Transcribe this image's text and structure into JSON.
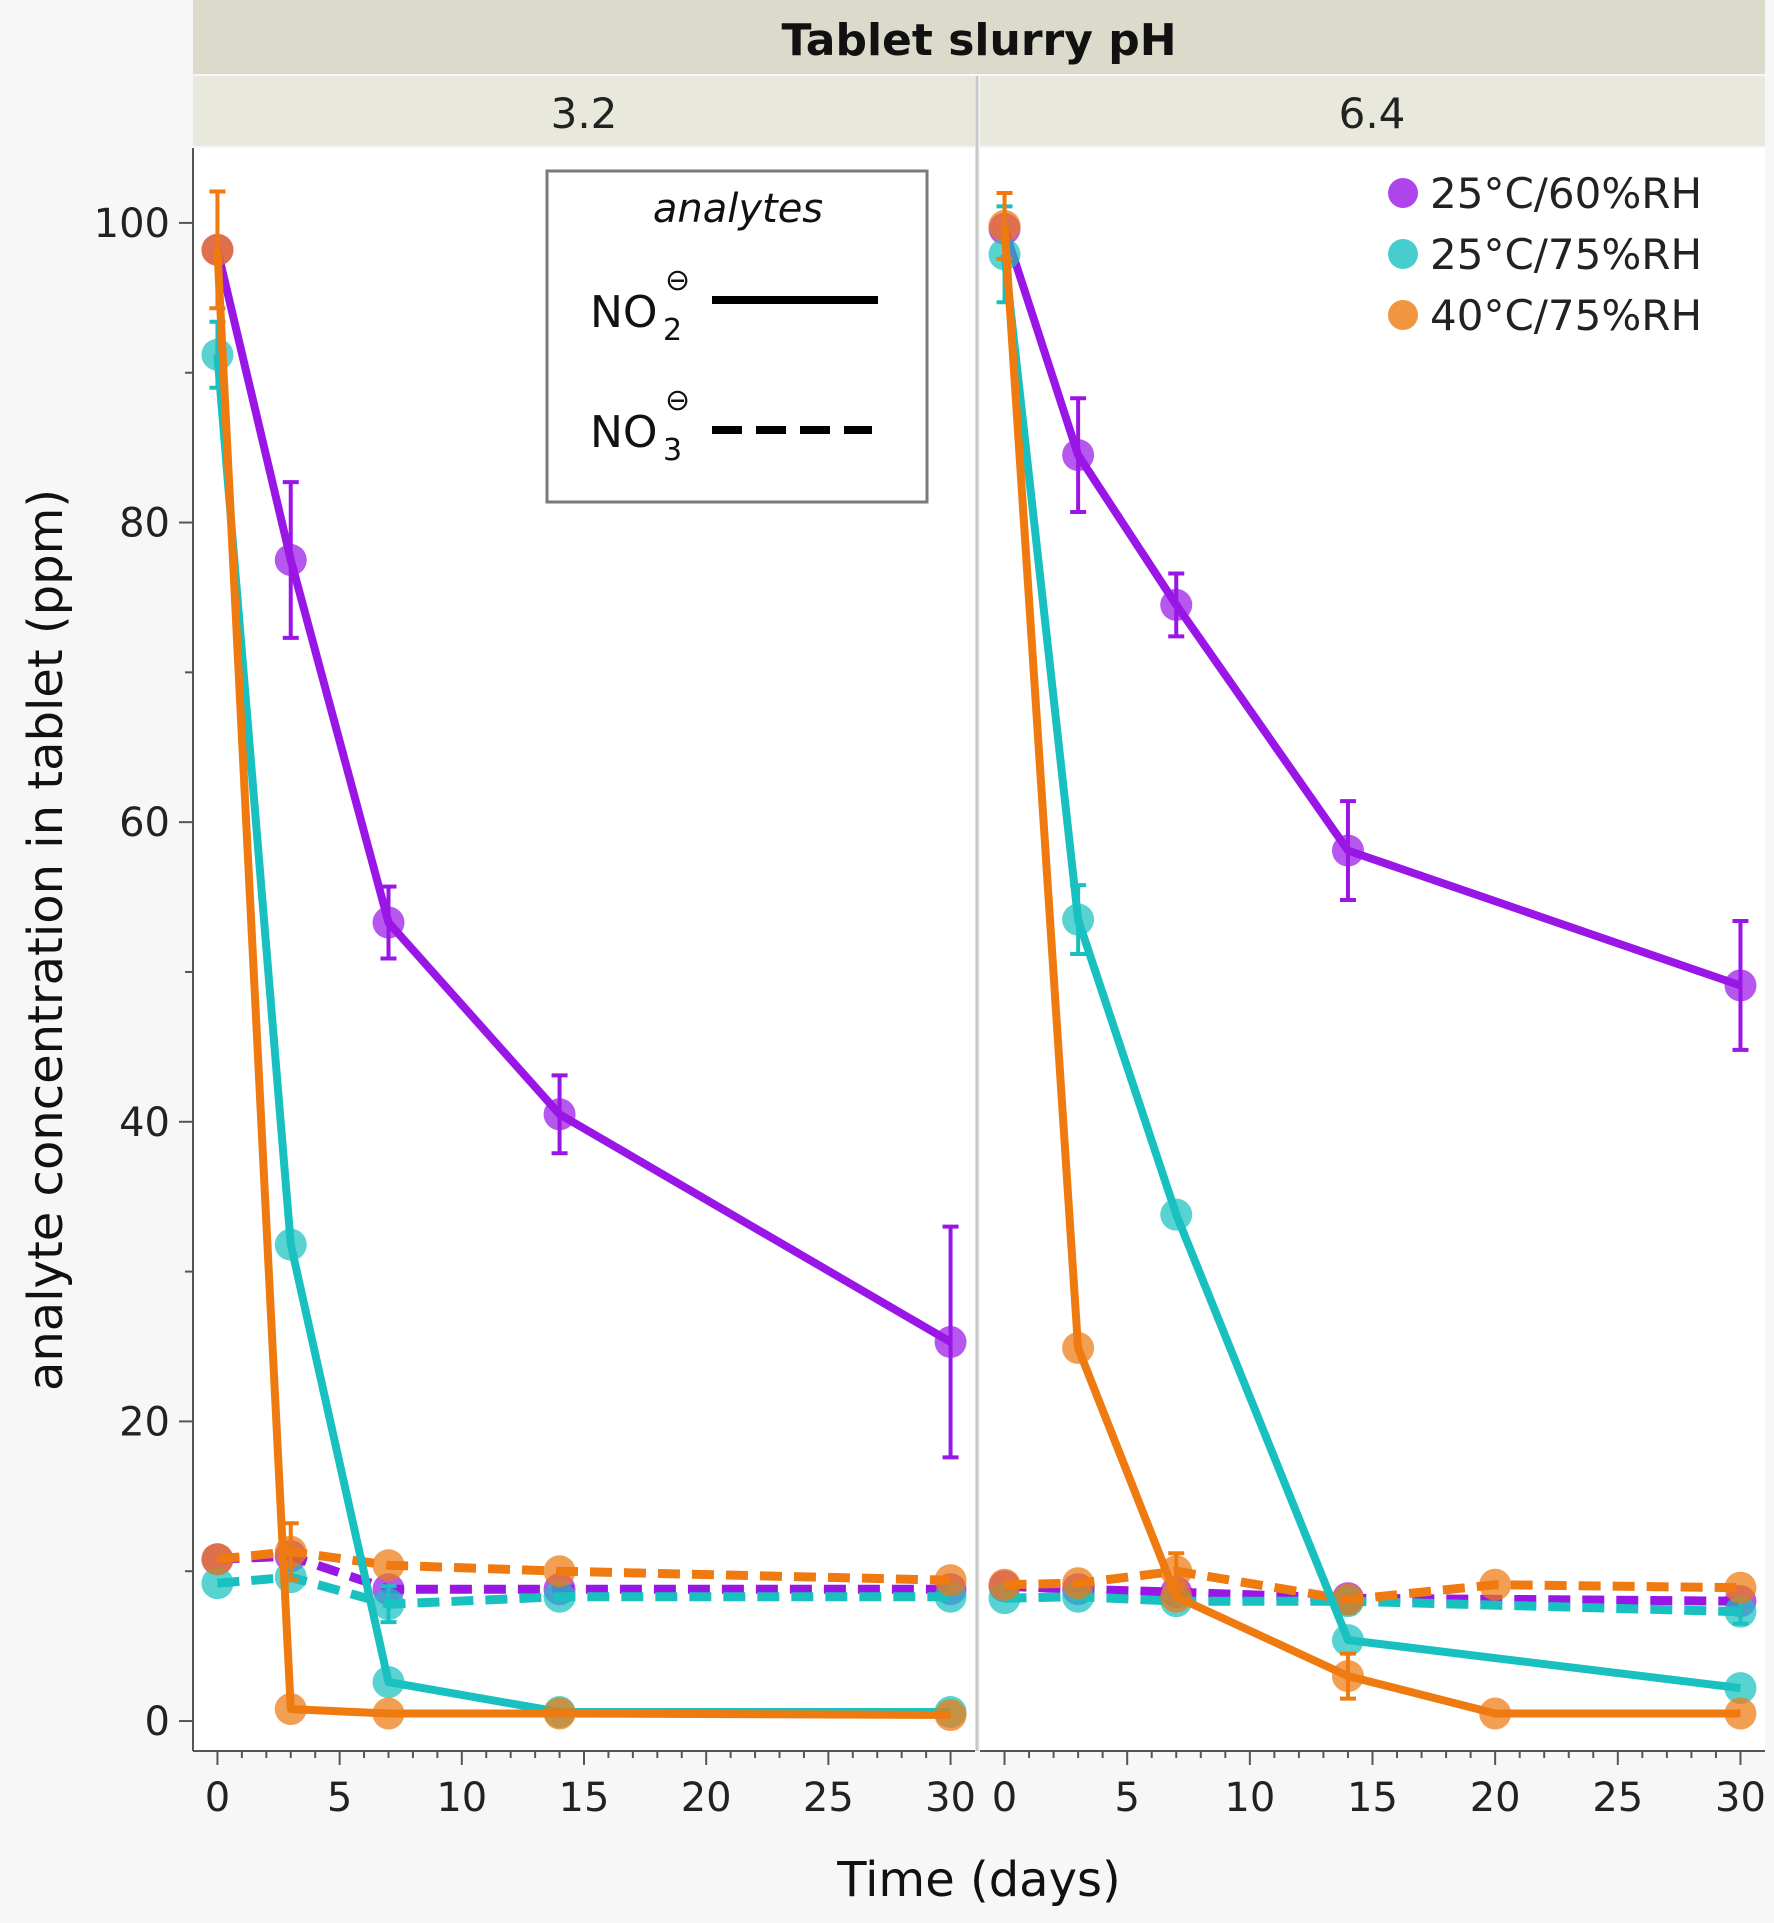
{
  "chart_data": {
    "type": "line",
    "facet_title": "Tablet slurry pH",
    "facets": [
      "3.2",
      "6.4"
    ],
    "xlabel": "Time (days)",
    "ylabel": "analyte concentration in tablet (ppm)",
    "xlim": [
      -1,
      31
    ],
    "ylim": [
      -2,
      105
    ],
    "xticks": [
      0,
      5,
      10,
      15,
      20,
      25,
      30
    ],
    "xtick_labels": [
      "0",
      "5",
      "10",
      "15",
      "20",
      "25",
      "30"
    ],
    "yticks": [
      0,
      20,
      40,
      60,
      80,
      100
    ],
    "ytick_labels": [
      "0",
      "20",
      "40",
      "60",
      "80",
      "100"
    ],
    "legend": {
      "placement": "top-right",
      "items": [
        {
          "label": "25°C/60%RH",
          "color": "#9a16e6"
        },
        {
          "label": "25°C/75%RH",
          "color": "#19c0c0"
        },
        {
          "label": "40°C/75%RH",
          "color": "#ee7a10"
        }
      ]
    },
    "analytes_legend": {
      "title": "analytes",
      "items": [
        {
          "base": "NO",
          "sub": "2",
          "charge": "⊖",
          "style": "solid"
        },
        {
          "base": "NO",
          "sub": "3",
          "charge": "⊖",
          "style": "dashed"
        }
      ]
    },
    "series": [
      {
        "facet": "3.2",
        "condition": "25°C/60%RH",
        "analyte": "nitrite",
        "color": "#9a16e6",
        "dash": false,
        "x": [
          0,
          3,
          7,
          14,
          30
        ],
        "y": [
          98.2,
          77.5,
          53.3,
          40.5,
          25.3
        ],
        "err": [
          null,
          5.2,
          2.4,
          2.6,
          7.7
        ]
      },
      {
        "facet": "3.2",
        "condition": "25°C/75%RH",
        "analyte": "nitrite",
        "color": "#19c0c0",
        "dash": false,
        "x": [
          0,
          3,
          7,
          14,
          30
        ],
        "y": [
          91.2,
          31.8,
          2.6,
          0.6,
          0.6
        ],
        "err": [
          2.2,
          null,
          null,
          null,
          null
        ]
      },
      {
        "facet": "3.2",
        "condition": "40°C/75%RH",
        "analyte": "nitrite",
        "color": "#ee7a10",
        "dash": false,
        "x": [
          0,
          3,
          7,
          14,
          30
        ],
        "y": [
          98.2,
          0.8,
          0.5,
          0.5,
          0.4
        ],
        "err": [
          3.9,
          null,
          null,
          null,
          null
        ]
      },
      {
        "facet": "3.2",
        "condition": "25°C/60%RH",
        "analyte": "nitrate",
        "color": "#9a16e6",
        "dash": true,
        "x": [
          0,
          3,
          7,
          14,
          30
        ],
        "y": [
          10.8,
          11.0,
          8.8,
          8.8,
          8.8
        ],
        "err": [
          null,
          null,
          null,
          null,
          null
        ]
      },
      {
        "facet": "3.2",
        "condition": "25°C/75%RH",
        "analyte": "nitrate",
        "color": "#19c0c0",
        "dash": true,
        "x": [
          0,
          3,
          7,
          14,
          30
        ],
        "y": [
          9.2,
          9.6,
          7.8,
          8.3,
          8.3
        ],
        "err": [
          null,
          null,
          1.2,
          null,
          null
        ]
      },
      {
        "facet": "3.2",
        "condition": "40°C/75%RH",
        "analyte": "nitrate",
        "color": "#ee7a10",
        "dash": true,
        "x": [
          0,
          3,
          7,
          14,
          30
        ],
        "y": [
          10.8,
          11.3,
          10.4,
          10.0,
          9.4
        ],
        "err": [
          null,
          1.9,
          null,
          null,
          null
        ]
      },
      {
        "facet": "6.4",
        "condition": "25°C/60%RH",
        "analyte": "nitrite",
        "color": "#9a16e6",
        "dash": false,
        "x": [
          0,
          3,
          7,
          14,
          30
        ],
        "y": [
          99.6,
          84.5,
          74.5,
          58.1,
          49.1
        ],
        "err": [
          null,
          3.8,
          2.1,
          3.3,
          4.3
        ]
      },
      {
        "facet": "6.4",
        "condition": "25°C/75%RH",
        "analyte": "nitrite",
        "color": "#19c0c0",
        "dash": false,
        "x": [
          0,
          3,
          7,
          14,
          30
        ],
        "y": [
          97.9,
          53.5,
          33.8,
          5.4,
          2.2
        ],
        "err": [
          3.2,
          2.3,
          null,
          null,
          null
        ]
      },
      {
        "facet": "6.4",
        "condition": "40°C/75%RH",
        "analyte": "nitrite",
        "color": "#ee7a10",
        "dash": false,
        "x": [
          0,
          3,
          7,
          14,
          20,
          30
        ],
        "y": [
          99.8,
          24.9,
          8.3,
          3.0,
          0.5,
          0.5
        ],
        "err": [
          2.2,
          null,
          null,
          1.5,
          null,
          null
        ]
      },
      {
        "facet": "6.4",
        "condition": "25°C/60%RH",
        "analyte": "nitrate",
        "color": "#9a16e6",
        "dash": true,
        "x": [
          0,
          3,
          7,
          14,
          30
        ],
        "y": [
          9.0,
          8.8,
          8.6,
          8.2,
          8.0
        ],
        "err": [
          null,
          null,
          null,
          null,
          null
        ]
      },
      {
        "facet": "6.4",
        "condition": "25°C/75%RH",
        "analyte": "nitrate",
        "color": "#19c0c0",
        "dash": true,
        "x": [
          0,
          3,
          7,
          14,
          30
        ],
        "y": [
          8.2,
          8.3,
          8.0,
          8.0,
          7.3
        ],
        "err": [
          null,
          null,
          null,
          0.8,
          0.8
        ]
      },
      {
        "facet": "6.4",
        "condition": "40°C/75%RH",
        "analyte": "nitrate",
        "color": "#ee7a10",
        "dash": true,
        "x": [
          0,
          3,
          7,
          14,
          20,
          30
        ],
        "y": [
          9.1,
          9.2,
          10.0,
          8.1,
          9.1,
          8.9
        ],
        "err": [
          null,
          null,
          1.2,
          null,
          null,
          null
        ]
      }
    ]
  }
}
